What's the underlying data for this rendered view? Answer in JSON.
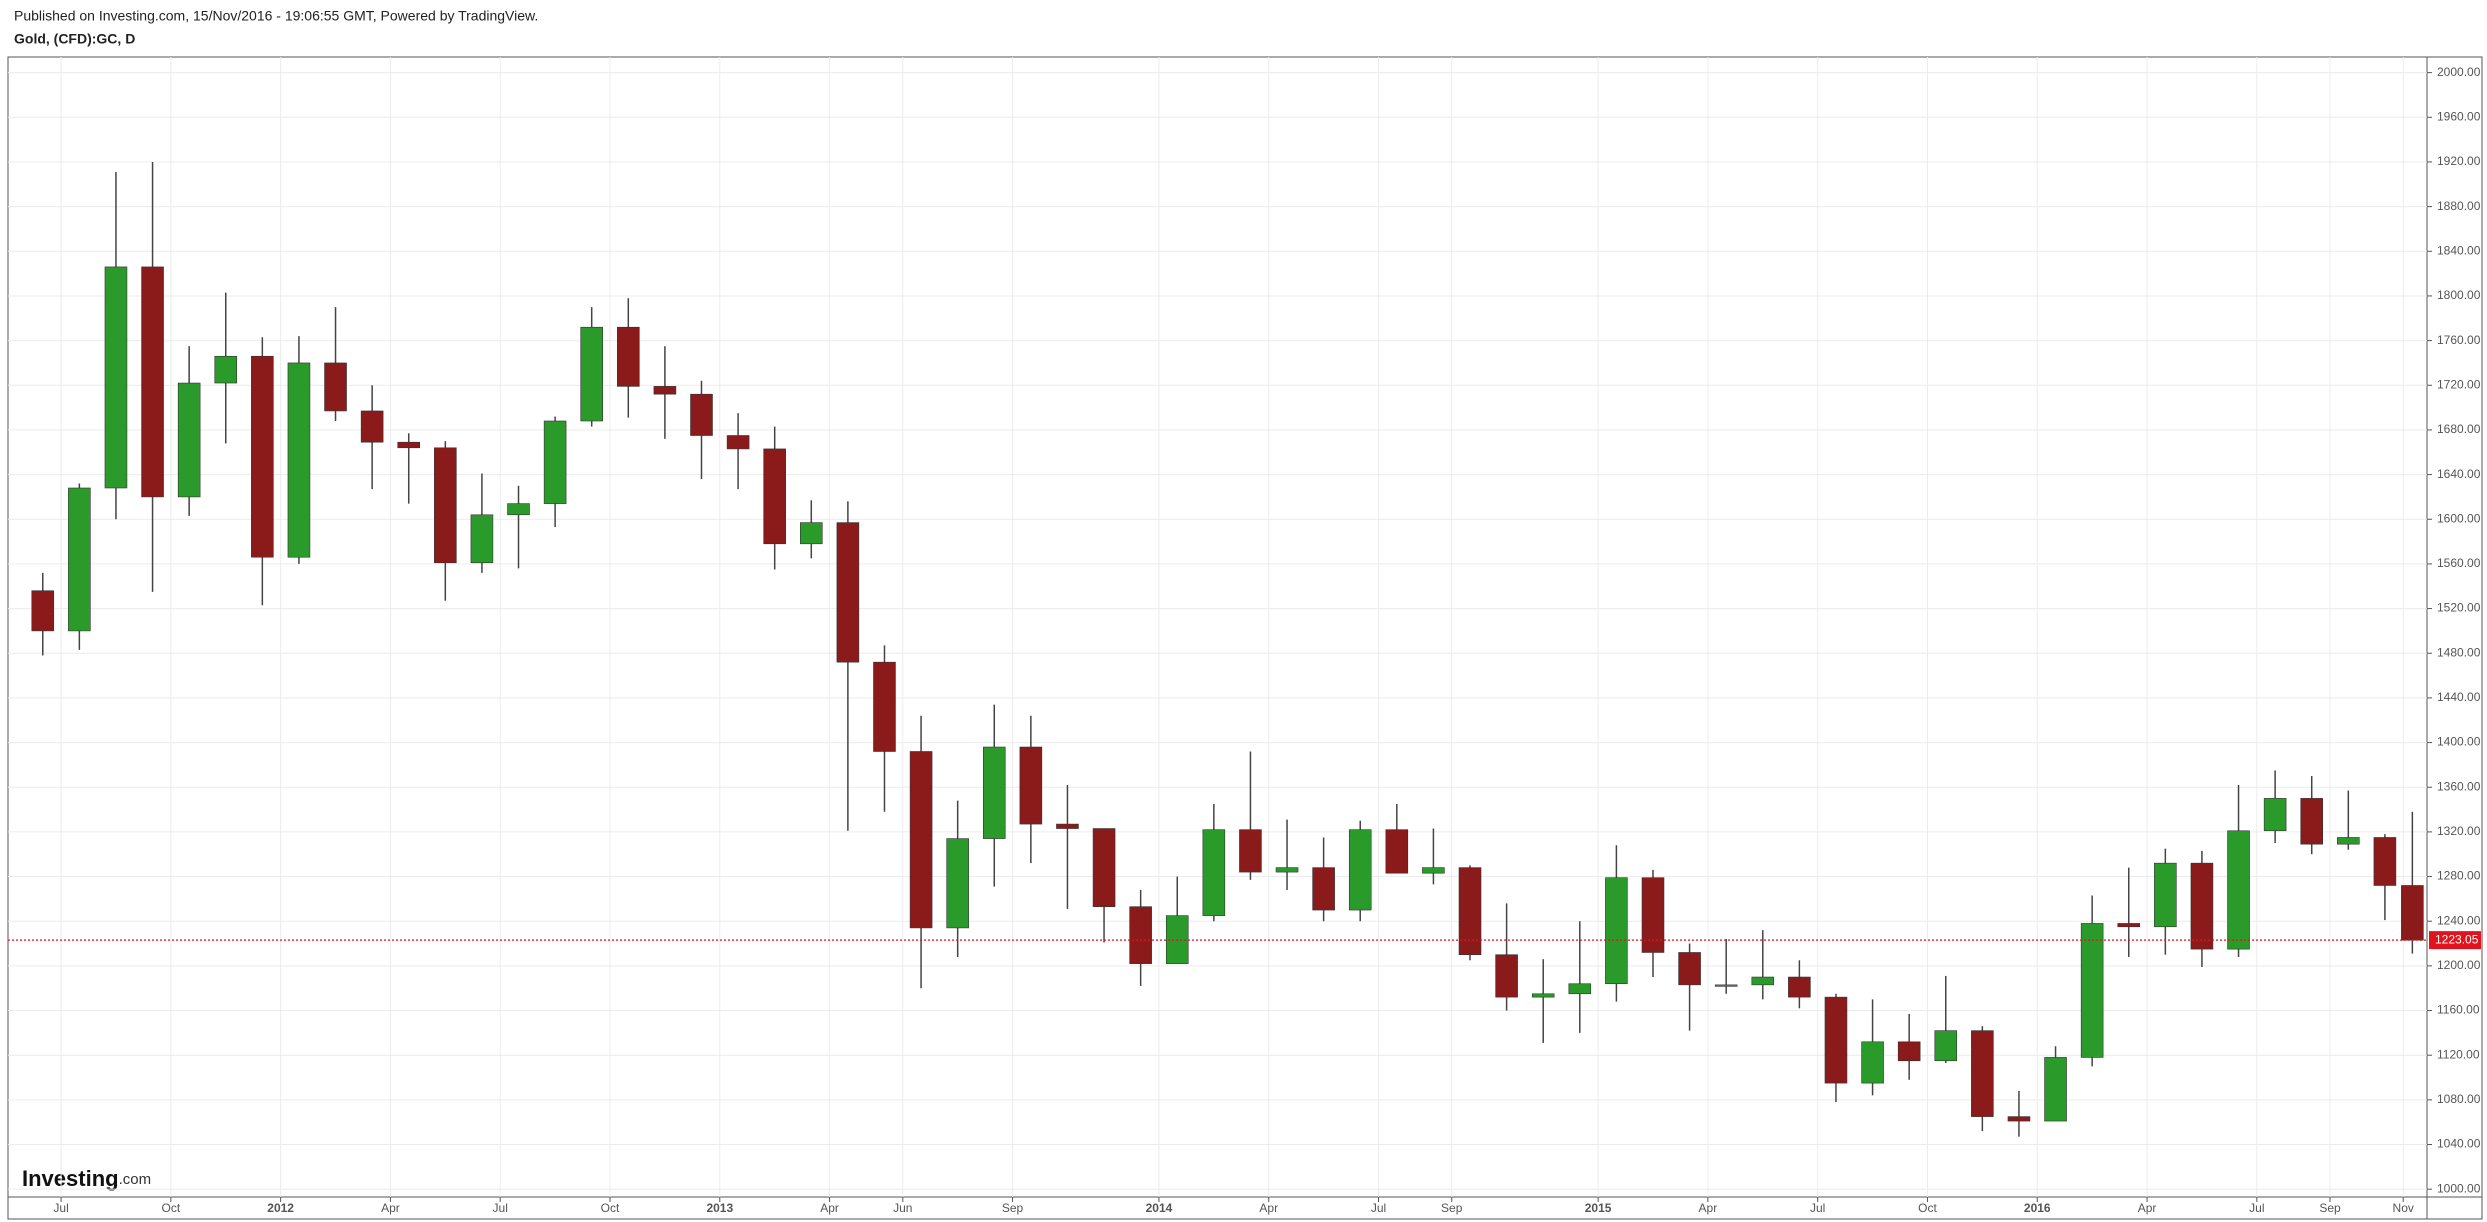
{
  "header": {
    "published": "Published on Investing.com, 15/Nov/2016 - 19:06:55 GMT, Powered by TradingView.",
    "symbol": "Gold, (CFD):GC, D"
  },
  "logo": [
    "Investing",
    ".com"
  ],
  "chart_data": {
    "type": "candlestick",
    "up_color": "#2a9a2a",
    "down_color": "#8b1a1a",
    "grid": true,
    "xlim": [
      4.55,
      70.65
    ],
    "ylim": [
      993,
      2014
    ],
    "xticks": [
      {
        "value": 6,
        "label": "Jul"
      },
      {
        "value": 9,
        "label": "Oct"
      },
      {
        "value": 12,
        "label": "2012"
      },
      {
        "value": 15,
        "label": "Apr"
      },
      {
        "value": 18,
        "label": "Jul"
      },
      {
        "value": 21,
        "label": "Oct"
      },
      {
        "value": 24,
        "label": "2013"
      },
      {
        "value": 27,
        "label": "Apr"
      },
      {
        "value": 29,
        "label": "Jun"
      },
      {
        "value": 32,
        "label": "Sep"
      },
      {
        "value": 36,
        "label": "2014"
      },
      {
        "value": 39,
        "label": "Apr"
      },
      {
        "value": 42,
        "label": "Jul"
      },
      {
        "value": 44,
        "label": "Sep"
      },
      {
        "value": 48,
        "label": "2015"
      },
      {
        "value": 51,
        "label": "Apr"
      },
      {
        "value": 54,
        "label": "Jul"
      },
      {
        "value": 57,
        "label": "Oct"
      },
      {
        "value": 60,
        "label": "2016"
      },
      {
        "value": 63,
        "label": "Apr"
      },
      {
        "value": 66,
        "label": "Jul"
      },
      {
        "value": 68,
        "label": "Sep"
      },
      {
        "value": 70,
        "label": "Nov"
      }
    ],
    "yticks": [
      {
        "value": 1000,
        "label": "1000.00"
      },
      {
        "value": 1040,
        "label": "1040.00"
      },
      {
        "value": 1080,
        "label": "1080.00"
      },
      {
        "value": 1120,
        "label": "1120.00"
      },
      {
        "value": 1160,
        "label": "1160.00"
      },
      {
        "value": 1200,
        "label": "1200.00"
      },
      {
        "value": 1240,
        "label": "1240.00"
      },
      {
        "value": 1280,
        "label": "1280.00"
      },
      {
        "value": 1320,
        "label": "1320.00"
      },
      {
        "value": 1360,
        "label": "1360.00"
      },
      {
        "value": 1400,
        "label": "1400.00"
      },
      {
        "value": 1440,
        "label": "1440.00"
      },
      {
        "value": 1480,
        "label": "1480.00"
      },
      {
        "value": 1520,
        "label": "1520.00"
      },
      {
        "value": 1560,
        "label": "1560.00"
      },
      {
        "value": 1600,
        "label": "1600.00"
      },
      {
        "value": 1640,
        "label": "1640.00"
      },
      {
        "value": 1680,
        "label": "1680.00"
      },
      {
        "value": 1720,
        "label": "1720.00"
      },
      {
        "value": 1760,
        "label": "1760.00"
      },
      {
        "value": 1800,
        "label": "1800.00"
      },
      {
        "value": 1840,
        "label": "1840.00"
      },
      {
        "value": 1880,
        "label": "1880.00"
      },
      {
        "value": 1920,
        "label": "1920.00"
      },
      {
        "value": 1960,
        "label": "1960.00"
      },
      {
        "value": 2000,
        "label": "2000.00"
      }
    ],
    "x": [
      5.5,
      6.5,
      7.5,
      8.5,
      9.5,
      10.5,
      11.5,
      12.5,
      13.5,
      14.5,
      15.5,
      16.5,
      17.5,
      18.5,
      19.5,
      20.5,
      21.5,
      22.5,
      23.5,
      24.5,
      25.5,
      26.5,
      27.5,
      28.5,
      29.5,
      30.5,
      31.5,
      32.5,
      33.5,
      34.5,
      35.5,
      36.5,
      37.5,
      38.5,
      39.5,
      40.5,
      41.5,
      42.5,
      43.5,
      44.5,
      45.5,
      46.5,
      47.5,
      48.5,
      49.5,
      50.5,
      51.5,
      52.5,
      53.5,
      54.5,
      55.5,
      56.5,
      57.5,
      58.5,
      59.5,
      60.5,
      61.5,
      62.5,
      63.5,
      64.5,
      65.5,
      66.5,
      67.5,
      68.5,
      69.5,
      70.25
    ],
    "open": [
      1536,
      1500,
      1628,
      1826,
      1620,
      1722,
      1746,
      1566,
      1740,
      1697,
      1669,
      1664,
      1561,
      1604,
      1614,
      1688,
      1772,
      1719,
      1712,
      1675,
      1663,
      1578,
      1597,
      1472,
      1392,
      1234,
      1314,
      1396,
      1327,
      1323,
      1253,
      1202,
      1245,
      1322,
      1284,
      1288,
      1250,
      1322,
      1283,
      1288,
      1210,
      1172,
      1175,
      1184,
      1279,
      1212,
      1183,
      1183,
      1190,
      1172,
      1095,
      1132,
      1115,
      1142,
      1065,
      1061,
      1118,
      1238,
      1235,
      1292,
      1215,
      1321,
      1350,
      1309,
      1315,
      1272
    ],
    "high": [
      1552,
      1632,
      1911,
      1920,
      1755,
      1803,
      1763,
      1764,
      1790,
      1720,
      1677,
      1670,
      1641,
      1630,
      1692,
      1790,
      1798,
      1755,
      1724,
      1695,
      1683,
      1617,
      1616,
      1487,
      1424,
      1348,
      1434,
      1424,
      1362,
      1322,
      1268,
      1280,
      1345,
      1392,
      1331,
      1315,
      1330,
      1345,
      1323,
      1290,
      1256,
      1206,
      1240,
      1308,
      1286,
      1220,
      1224,
      1232,
      1205,
      1175,
      1170,
      1157,
      1191,
      1146,
      1088,
      1128,
      1263,
      1288,
      1305,
      1303,
      1362,
      1375,
      1370,
      1357,
      1318,
      1338
    ],
    "low": [
      1478,
      1483,
      1600,
      1535,
      1603,
      1668,
      1523,
      1560,
      1688,
      1627,
      1614,
      1527,
      1552,
      1556,
      1593,
      1683,
      1691,
      1672,
      1636,
      1627,
      1555,
      1565,
      1321,
      1338,
      1180,
      1208,
      1271,
      1292,
      1251,
      1221,
      1182,
      1202,
      1240,
      1277,
      1268,
      1240,
      1240,
      1285,
      1273,
      1205,
      1160,
      1131,
      1140,
      1168,
      1190,
      1142,
      1175,
      1170,
      1162,
      1078,
      1084,
      1098,
      1113,
      1052,
      1047,
      1062,
      1110,
      1208,
      1210,
      1199,
      1208,
      1310,
      1300,
      1304,
      1241,
      1211
    ],
    "close": [
      1500,
      1628,
      1826,
      1620,
      1722,
      1746,
      1566,
      1740,
      1697,
      1669,
      1664,
      1561,
      1604,
      1614,
      1688,
      1772,
      1719,
      1712,
      1675,
      1663,
      1578,
      1597,
      1472,
      1392,
      1234,
      1314,
      1396,
      1327,
      1323,
      1253,
      1202,
      1245,
      1322,
      1284,
      1288,
      1250,
      1322,
      1283,
      1288,
      1210,
      1172,
      1175,
      1184,
      1279,
      1212,
      1183,
      1183,
      1190,
      1172,
      1095,
      1132,
      1115,
      1142,
      1065,
      1061,
      1118,
      1238,
      1235,
      1292,
      1215,
      1321,
      1350,
      1309,
      1315,
      1272,
      1223
    ],
    "last_price": 1223.05
  }
}
